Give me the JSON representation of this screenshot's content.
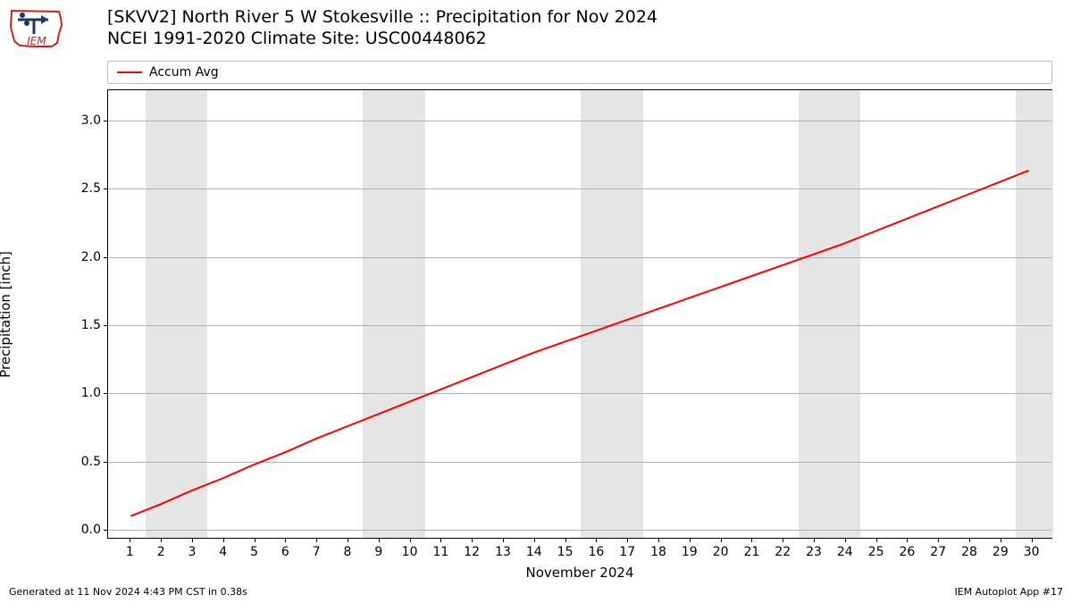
{
  "logo": {
    "label_text": "IEM",
    "outline_color": "#d02020",
    "tool_color": "#1a3a6e"
  },
  "title_line1": "[SKVV2] North River 5 W Stokesville :: Precipitation for Nov 2024",
  "title_line2": "NCEI 1991-2020 Climate Site: USC00448062",
  "legend": {
    "label": "Accum Avg",
    "color": "#ff0000"
  },
  "chart": {
    "type": "line",
    "x_label": "November 2024",
    "y_label": "Precipitation [inch]",
    "xlim": [
      0.3,
      30.7
    ],
    "ylim": [
      -0.07,
      3.22
    ],
    "yticks": [
      0.0,
      0.5,
      1.0,
      1.5,
      2.0,
      2.5,
      3.0
    ],
    "xticks": [
      1,
      2,
      3,
      4,
      5,
      6,
      7,
      8,
      9,
      10,
      11,
      12,
      13,
      14,
      15,
      16,
      17,
      18,
      19,
      20,
      21,
      22,
      23,
      24,
      25,
      26,
      27,
      28,
      29,
      30
    ],
    "weekend_bands": [
      [
        1.5,
        3.5
      ],
      [
        8.5,
        10.5
      ],
      [
        15.5,
        17.5
      ],
      [
        22.5,
        24.5
      ],
      [
        29.5,
        30.7
      ]
    ],
    "grid_color": "#b0b0b0",
    "band_color": "#e5e5e5",
    "background_color": "#ffffff",
    "tick_fontsize": 14,
    "label_fontsize": 15,
    "series": {
      "color": "#ff0000",
      "line_width": 2,
      "x": [
        1,
        2,
        3,
        4,
        5,
        6,
        7,
        8,
        9,
        10,
        11,
        12,
        13,
        14,
        15,
        16,
        17,
        18,
        19,
        20,
        21,
        22,
        23,
        24,
        25,
        26,
        27,
        28,
        29,
        30
      ],
      "y": [
        0.09,
        0.18,
        0.28,
        0.37,
        0.47,
        0.56,
        0.66,
        0.75,
        0.84,
        0.93,
        1.02,
        1.11,
        1.2,
        1.29,
        1.37,
        1.45,
        1.53,
        1.61,
        1.69,
        1.77,
        1.85,
        1.93,
        2.01,
        2.09,
        2.18,
        2.27,
        2.36,
        2.45,
        2.54,
        2.63
      ]
    }
  },
  "footer_left": "Generated at 11 Nov 2024 4:43 PM CST in 0.38s",
  "footer_right": "IEM Autoplot App #17"
}
